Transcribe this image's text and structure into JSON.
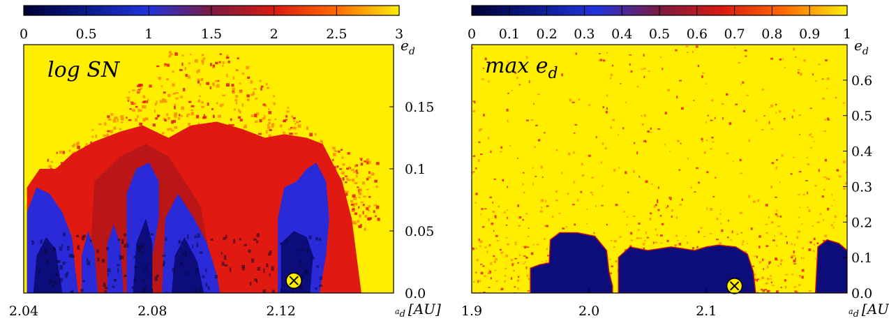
{
  "chart_data": [
    {
      "type": "heatmap",
      "title": "",
      "overlay_label_main": "log SN",
      "overlay_label_sub": "",
      "xlabel": "a",
      "xlabel_sub": "d",
      "xlabel_unit": "[AU]",
      "ylabel": "e",
      "ylabel_sub": "d",
      "xlim": [
        2.04,
        2.155
      ],
      "ylim": [
        0.0,
        0.2
      ],
      "x_ticks": [
        2.04,
        2.08,
        2.12
      ],
      "x_tick_labels": [
        "2.04",
        "2.08",
        "2.12"
      ],
      "y_ticks": [
        0.0,
        0.05,
        0.1,
        0.15
      ],
      "y_tick_labels": [
        "0.0",
        "0.05",
        "0.1",
        "0.15"
      ],
      "colorbar": {
        "range": [
          0,
          3
        ],
        "ticks": [
          0,
          0.5,
          1,
          1.5,
          2,
          2.5,
          3
        ],
        "tick_labels": [
          "0",
          "0.5",
          "1",
          "1.5",
          "2",
          "2.5",
          "3"
        ],
        "colors": [
          "#000033",
          "#0a1a8a",
          "#2233dd",
          "#7a1a40",
          "#d81a10",
          "#ff6a00",
          "#ffee00"
        ]
      },
      "marker": {
        "x": 2.124,
        "y": 0.01,
        "color": "#ffee00"
      }
    },
    {
      "type": "heatmap",
      "title": "",
      "overlay_label_main": "max e",
      "overlay_label_sub": "d",
      "xlabel": "a",
      "xlabel_sub": "d",
      "xlabel_unit": "[AU]",
      "ylabel": "e",
      "ylabel_sub": "d",
      "xlim": [
        1.9,
        2.22
      ],
      "ylim": [
        0.0,
        0.7
      ],
      "x_ticks": [
        1.9,
        2.0,
        2.1
      ],
      "x_tick_labels": [
        "1.9",
        "2.0",
        "2.1"
      ],
      "y_ticks": [
        0.0,
        0.1,
        0.2,
        0.3,
        0.4,
        0.5,
        0.6
      ],
      "y_tick_labels": [
        "0.0",
        "0.1",
        "0.2",
        "0.3",
        "0.4",
        "0.5",
        "0.6"
      ],
      "colorbar": {
        "range": [
          0,
          1
        ],
        "ticks": [
          0,
          0.1,
          0.2,
          0.3,
          0.4,
          0.5,
          0.6,
          0.7,
          0.8,
          0.9,
          1
        ],
        "tick_labels": [
          "0",
          "0.1",
          "0.2",
          "0.3",
          "0.4",
          "0.5",
          "0.6",
          "0.7",
          "0.8",
          "0.9",
          "1"
        ],
        "colors": [
          "#000033",
          "#0a1a8a",
          "#2233dd",
          "#7a1a40",
          "#d81a10",
          "#ff6a00",
          "#ffee00"
        ]
      },
      "marker": {
        "x": 2.124,
        "y": 0.02,
        "color": "#ffee00"
      }
    }
  ]
}
